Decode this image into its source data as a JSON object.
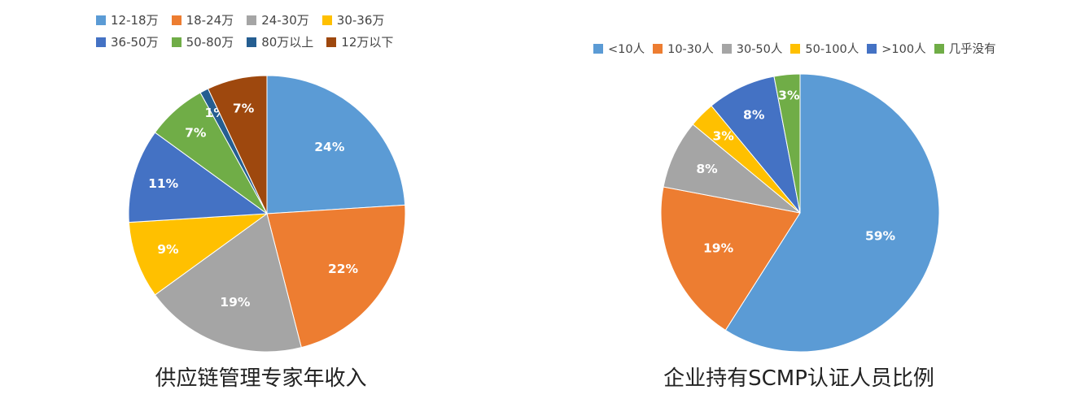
{
  "chart_data": [
    {
      "type": "pie",
      "title": "供应链管理专家年收入",
      "legend_position": "top",
      "slices": [
        {
          "label": "12-18万",
          "value": 24,
          "display": "24%",
          "color": "#5B9BD5"
        },
        {
          "label": "18-24万",
          "value": 22,
          "display": "22%",
          "color": "#ED7D31"
        },
        {
          "label": "24-30万",
          "value": 19,
          "display": "19%",
          "color": "#A5A5A5"
        },
        {
          "label": "30-36万",
          "value": 9,
          "display": "9%",
          "color": "#FFC000"
        },
        {
          "label": "36-50万",
          "value": 11,
          "display": "11%",
          "color": "#4472C4"
        },
        {
          "label": "50-80万",
          "value": 7,
          "display": "7%",
          "color": "#70AD47"
        },
        {
          "label": "80万以上",
          "value": 1,
          "display": "1%",
          "color": "#255E91"
        },
        {
          "label": "12万以下",
          "value": 7,
          "display": "7%",
          "color": "#9E480E"
        }
      ]
    },
    {
      "type": "pie",
      "title": "企业持有SCMP认证人员比例",
      "legend_position": "top",
      "slices": [
        {
          "label": "<10人",
          "value": 59,
          "display": "59%",
          "color": "#5B9BD5"
        },
        {
          "label": "10-30人",
          "value": 19,
          "display": "19%",
          "color": "#ED7D31"
        },
        {
          "label": "30-50人",
          "value": 8,
          "display": "8%",
          "color": "#A5A5A5"
        },
        {
          "label": "50-100人",
          "value": 3,
          "display": "3%",
          "color": "#FFC000"
        },
        {
          "label": ">100人",
          "value": 8,
          "display": "8%",
          "color": "#4472C4"
        },
        {
          "label": "几乎没有",
          "value": 3,
          "display": "3%",
          "color": "#70AD47"
        }
      ]
    }
  ]
}
